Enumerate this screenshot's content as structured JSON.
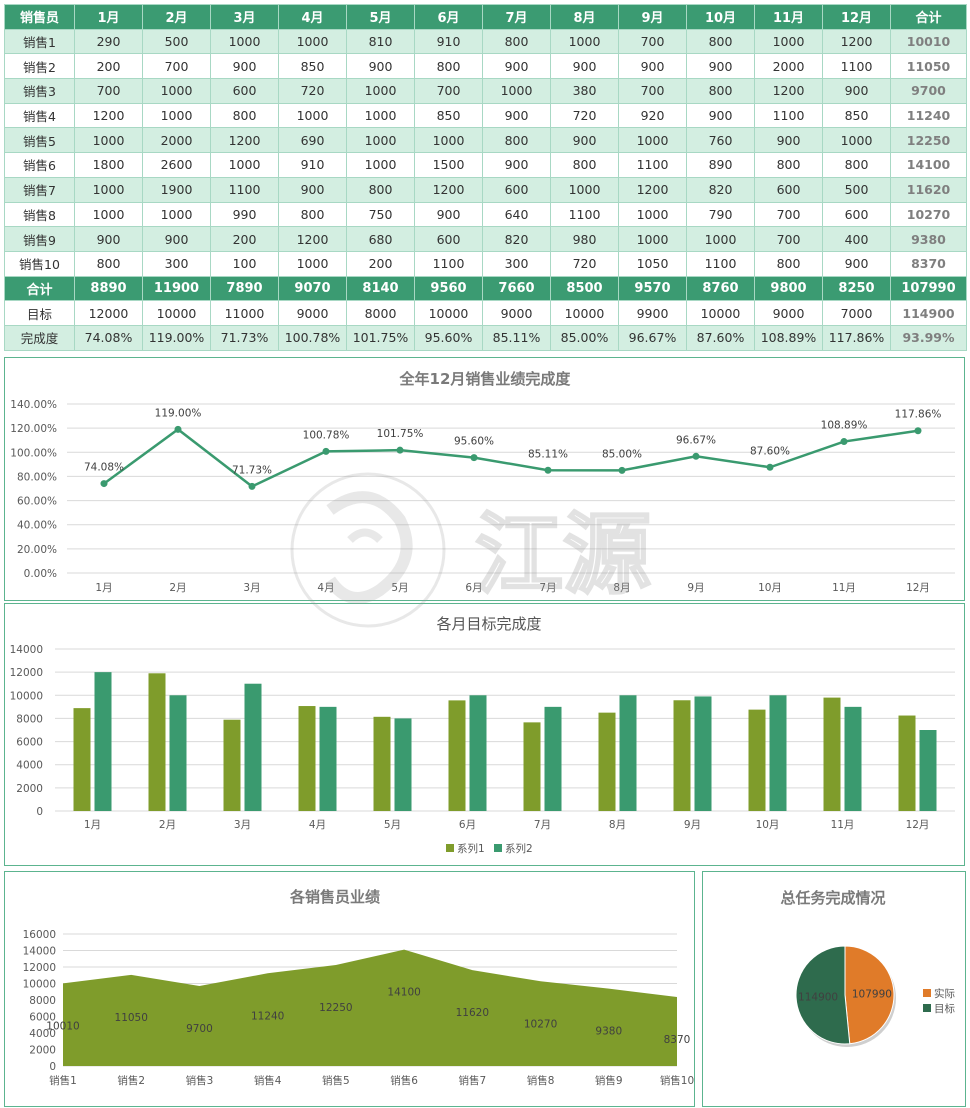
{
  "table": {
    "headers": [
      "销售员",
      "1月",
      "2月",
      "3月",
      "4月",
      "5月",
      "6月",
      "7月",
      "8月",
      "9月",
      "10月",
      "11月",
      "12月",
      "合计"
    ],
    "rows": [
      [
        "销售1",
        "290",
        "500",
        "1000",
        "1000",
        "810",
        "910",
        "800",
        "1000",
        "700",
        "800",
        "1000",
        "1200",
        "10010"
      ],
      [
        "销售2",
        "200",
        "700",
        "900",
        "850",
        "900",
        "800",
        "900",
        "900",
        "900",
        "900",
        "2000",
        "1100",
        "11050"
      ],
      [
        "销售3",
        "700",
        "1000",
        "600",
        "720",
        "1000",
        "700",
        "1000",
        "380",
        "700",
        "800",
        "1200",
        "900",
        "9700"
      ],
      [
        "销售4",
        "1200",
        "1000",
        "800",
        "1000",
        "1000",
        "850",
        "900",
        "720",
        "920",
        "900",
        "1100",
        "850",
        "11240"
      ],
      [
        "销售5",
        "1000",
        "2000",
        "1200",
        "690",
        "1000",
        "1000",
        "800",
        "900",
        "1000",
        "760",
        "900",
        "1000",
        "12250"
      ],
      [
        "销售6",
        "1800",
        "2600",
        "1000",
        "910",
        "1000",
        "1500",
        "900",
        "800",
        "1100",
        "890",
        "800",
        "800",
        "14100"
      ],
      [
        "销售7",
        "1000",
        "1900",
        "1100",
        "900",
        "800",
        "1200",
        "600",
        "1000",
        "1200",
        "820",
        "600",
        "500",
        "11620"
      ],
      [
        "销售8",
        "1000",
        "1000",
        "990",
        "800",
        "750",
        "900",
        "640",
        "1100",
        "1000",
        "790",
        "700",
        "600",
        "10270"
      ],
      [
        "销售9",
        "900",
        "900",
        "200",
        "1200",
        "680",
        "600",
        "820",
        "980",
        "1000",
        "1000",
        "700",
        "400",
        "9380"
      ],
      [
        "销售10",
        "800",
        "300",
        "100",
        "1000",
        "200",
        "1100",
        "300",
        "720",
        "1050",
        "1100",
        "800",
        "900",
        "8370"
      ]
    ],
    "sum_row": [
      "合计",
      "8890",
      "11900",
      "7890",
      "9070",
      "8140",
      "9560",
      "7660",
      "8500",
      "9570",
      "8760",
      "9800",
      "8250",
      "107990"
    ],
    "target_row": [
      "目标",
      "12000",
      "10000",
      "11000",
      "9000",
      "8000",
      "10000",
      "9000",
      "10000",
      "9900",
      "10000",
      "9000",
      "7000",
      "114900"
    ],
    "rate_row": [
      "完成度",
      "74.08%",
      "119.00%",
      "71.73%",
      "100.78%",
      "101.75%",
      "95.60%",
      "85.11%",
      "85.00%",
      "96.67%",
      "87.60%",
      "108.89%",
      "117.86%",
      "93.99%"
    ]
  },
  "watermark": {
    "text": "江源"
  },
  "colors": {
    "header_green": "#3b9b72",
    "stripe": "#d3eee1",
    "line": "#3a9a6f",
    "bar1": "#7f9c2b",
    "bar2": "#3a9a6f",
    "area": "#7f9c2b",
    "pie_actual": "#e07b29",
    "pie_target": "#2e6b4d"
  },
  "chart_data": [
    {
      "type": "line",
      "title": "全年12月销售业绩完成度",
      "categories": [
        "1月",
        "2月",
        "3月",
        "4月",
        "5月",
        "6月",
        "7月",
        "8月",
        "9月",
        "10月",
        "11月",
        "12月"
      ],
      "values": [
        74.08,
        119.0,
        71.73,
        100.78,
        101.75,
        95.6,
        85.11,
        85.0,
        96.67,
        87.6,
        108.89,
        117.86
      ],
      "labels": [
        "74.08%",
        "119.00%",
        "71.73%",
        "100.78%",
        "101.75%",
        "95.60%",
        "85.11%",
        "85.00%",
        "96.67%",
        "87.60%",
        "108.89%",
        "117.86%"
      ],
      "yticks": [
        "0.00%",
        "20.00%",
        "40.00%",
        "60.00%",
        "80.00%",
        "100.00%",
        "120.00%",
        "140.00%"
      ],
      "ylim": [
        0,
        140
      ],
      "grid": true
    },
    {
      "type": "bar",
      "title": "各月目标完成度",
      "categories": [
        "1月",
        "2月",
        "3月",
        "4月",
        "5月",
        "6月",
        "7月",
        "8月",
        "9月",
        "10月",
        "11月",
        "12月"
      ],
      "series": [
        {
          "name": "系列1",
          "values": [
            8890,
            11900,
            7890,
            9070,
            8140,
            9560,
            7660,
            8500,
            9570,
            8760,
            9800,
            8250
          ]
        },
        {
          "name": "系列2",
          "values": [
            12000,
            10000,
            11000,
            9000,
            8000,
            10000,
            9000,
            10000,
            9900,
            10000,
            9000,
            7000
          ]
        }
      ],
      "yticks": [
        "0",
        "2000",
        "4000",
        "6000",
        "8000",
        "10000",
        "12000",
        "14000"
      ],
      "ylim": [
        0,
        14000
      ],
      "legend": "bottom",
      "grid": true
    },
    {
      "type": "area",
      "title": "各销售员业绩",
      "categories": [
        "销售1",
        "销售2",
        "销售3",
        "销售4",
        "销售5",
        "销售6",
        "销售7",
        "销售8",
        "销售9",
        "销售10"
      ],
      "values": [
        10010,
        11050,
        9700,
        11240,
        12250,
        14100,
        11620,
        10270,
        9380,
        8370
      ],
      "yticks": [
        "0",
        "2000",
        "4000",
        "6000",
        "8000",
        "10000",
        "12000",
        "14000",
        "16000"
      ],
      "ylim": [
        0,
        16000
      ],
      "grid": true
    },
    {
      "type": "pie",
      "title": "总任务完成情况",
      "slices": [
        {
          "name": "实际",
          "value": 107990
        },
        {
          "name": "目标",
          "value": 114900
        }
      ],
      "legend": "right"
    }
  ]
}
